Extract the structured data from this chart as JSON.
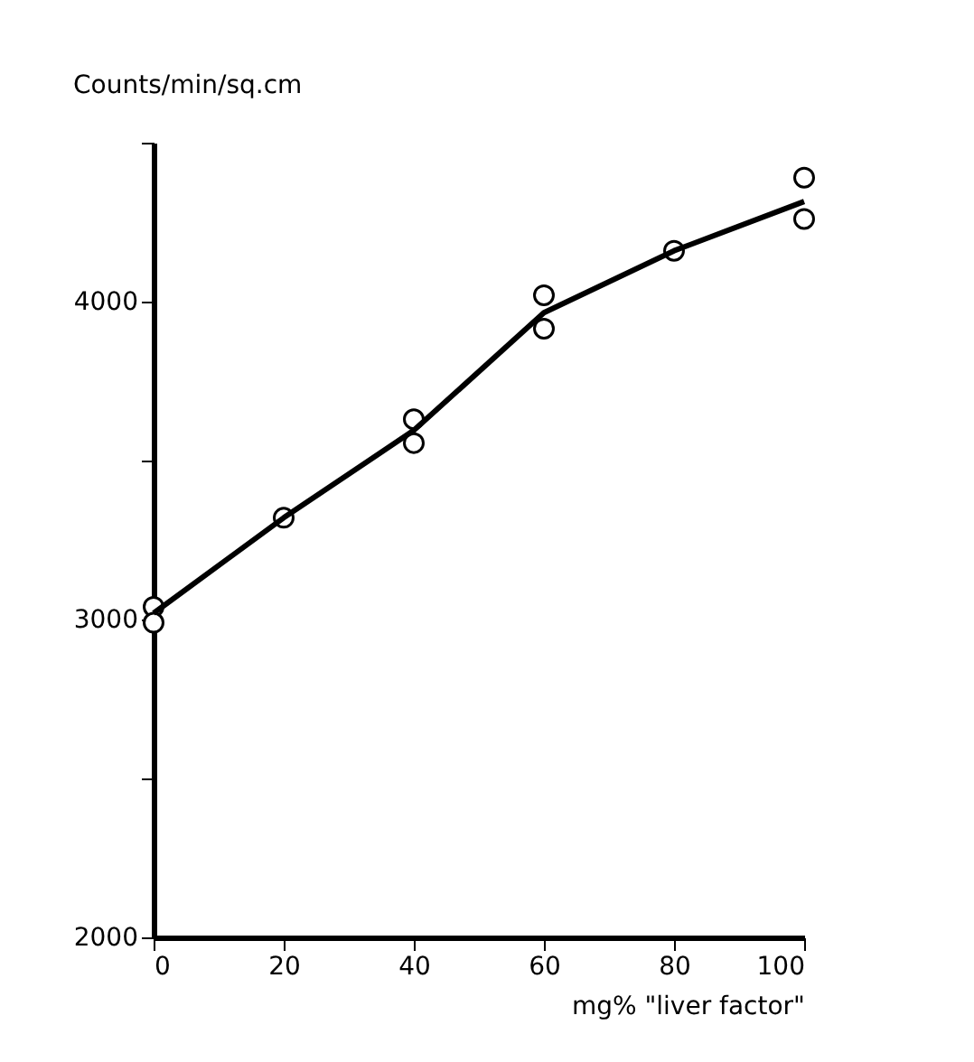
{
  "chart_data": {
    "type": "scatter",
    "ylabel": "Counts/min/sq.cm",
    "xlabel": "mg% \"liver factor\"",
    "series": [
      {
        "color": "#000000",
        "marker": "circle",
        "x": [
          0,
          0,
          20,
          40,
          40,
          60,
          60,
          80,
          100,
          100
        ],
        "values": [
          3040,
          2990,
          3320,
          3630,
          3555,
          4020,
          3915,
          4160,
          4390,
          4260
        ]
      },
      {
        "type": "line",
        "color": "#000000",
        "marker": "none",
        "line_style": "solid",
        "x": [
          0,
          20,
          40,
          60,
          80,
          100
        ],
        "values": [
          3020,
          3320,
          3595,
          3965,
          4160,
          4315
        ]
      }
    ],
    "xlim": [
      0,
      100
    ],
    "xticks": [
      0,
      20,
      40,
      60,
      80,
      100
    ],
    "ylim": [
      2000,
      4500
    ],
    "yticks": [
      2000,
      {
        "value": 2500,
        "label": null
      },
      3000,
      {
        "value": 3500,
        "label": null
      },
      4000,
      {
        "value": 4500,
        "label": null
      }
    ],
    "grid": false
  }
}
